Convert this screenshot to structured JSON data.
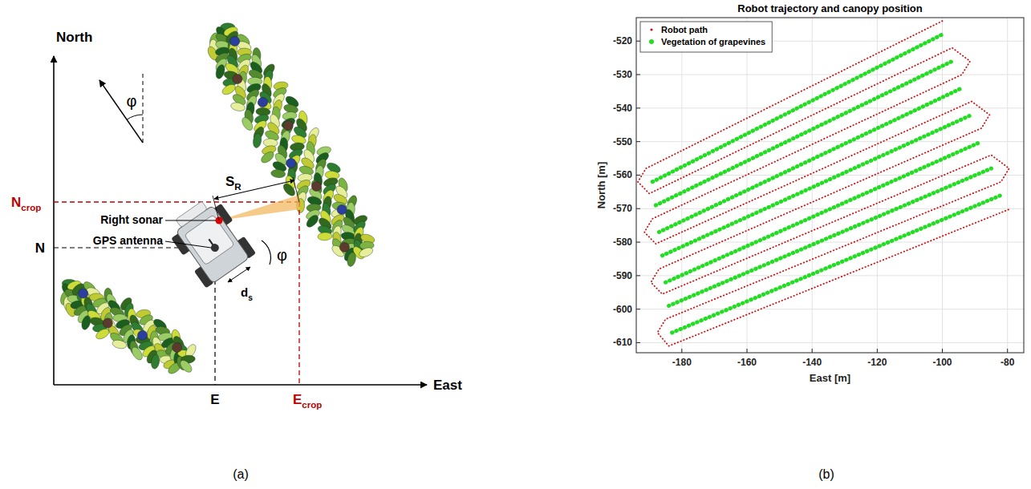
{
  "panels": [
    "(a)",
    "(b)"
  ],
  "diagram": {
    "north_label": "North",
    "east_label": "East",
    "crop_north": {
      "text": "N",
      "sub": "crop"
    },
    "crop_east": {
      "text": "E",
      "sub": "crop"
    },
    "robot_north": "N",
    "robot_east": "E",
    "heading_angle": "φ",
    "sonar_angle": "φ",
    "sonar_distance": {
      "text": "S",
      "sub": "R"
    },
    "sonar_offset": {
      "text": "d",
      "sub": "s"
    },
    "right_sonar": "Right sonar",
    "gps_antenna": "GPS antenna"
  },
  "chart_data": {
    "type": "line",
    "title": "Robot trajectory and canopy position",
    "x_label": "East [m]",
    "y_label": "North [m]",
    "xlim": [
      -194,
      -75
    ],
    "ylim": [
      -613,
      -513
    ],
    "xticks": [
      -180,
      -160,
      -140,
      -120,
      -100,
      -80
    ],
    "yticks": [
      -610,
      -600,
      -590,
      -580,
      -570,
      -560,
      -550,
      -540,
      -530,
      -520
    ],
    "grid": true,
    "legend": "upper left",
    "series": [
      {
        "name": "Robot path",
        "color": "#d01010",
        "marker": ".",
        "line_style": "dotted",
        "x": [
          -100,
          -191,
          -193.5,
          -190,
          -97,
          -91.5,
          -94,
          -189,
          -191.5,
          -188,
          -91,
          -85.5,
          -88,
          -187,
          -189.5,
          -186,
          -85,
          -79.5,
          -82,
          -185,
          -187.5,
          -184,
          -79
        ],
        "values": [
          -514,
          -558,
          -562,
          -565.5,
          -522,
          -526,
          -530,
          -573,
          -577,
          -580.5,
          -538,
          -542,
          -546,
          -588,
          -592,
          -595.5,
          -554,
          -558,
          -562,
          -603,
          -607,
          -611,
          -570
        ]
      },
      {
        "name": "Vegetation of grapevines",
        "color": "#22dd22",
        "marker": "o",
        "line_style": "dotted",
        "x": [
          -189,
          -100,
          null,
          -188,
          -97,
          null,
          -187,
          -94,
          null,
          -186,
          -91,
          null,
          -185,
          -88,
          null,
          -184,
          -85,
          null,
          -183,
          -82
        ],
        "values": [
          -562,
          -518,
          null,
          -569,
          -526,
          null,
          -577,
          -534,
          null,
          -584,
          -542,
          null,
          -592,
          -550,
          null,
          -599,
          -558,
          null,
          -607,
          -566
        ]
      }
    ]
  }
}
